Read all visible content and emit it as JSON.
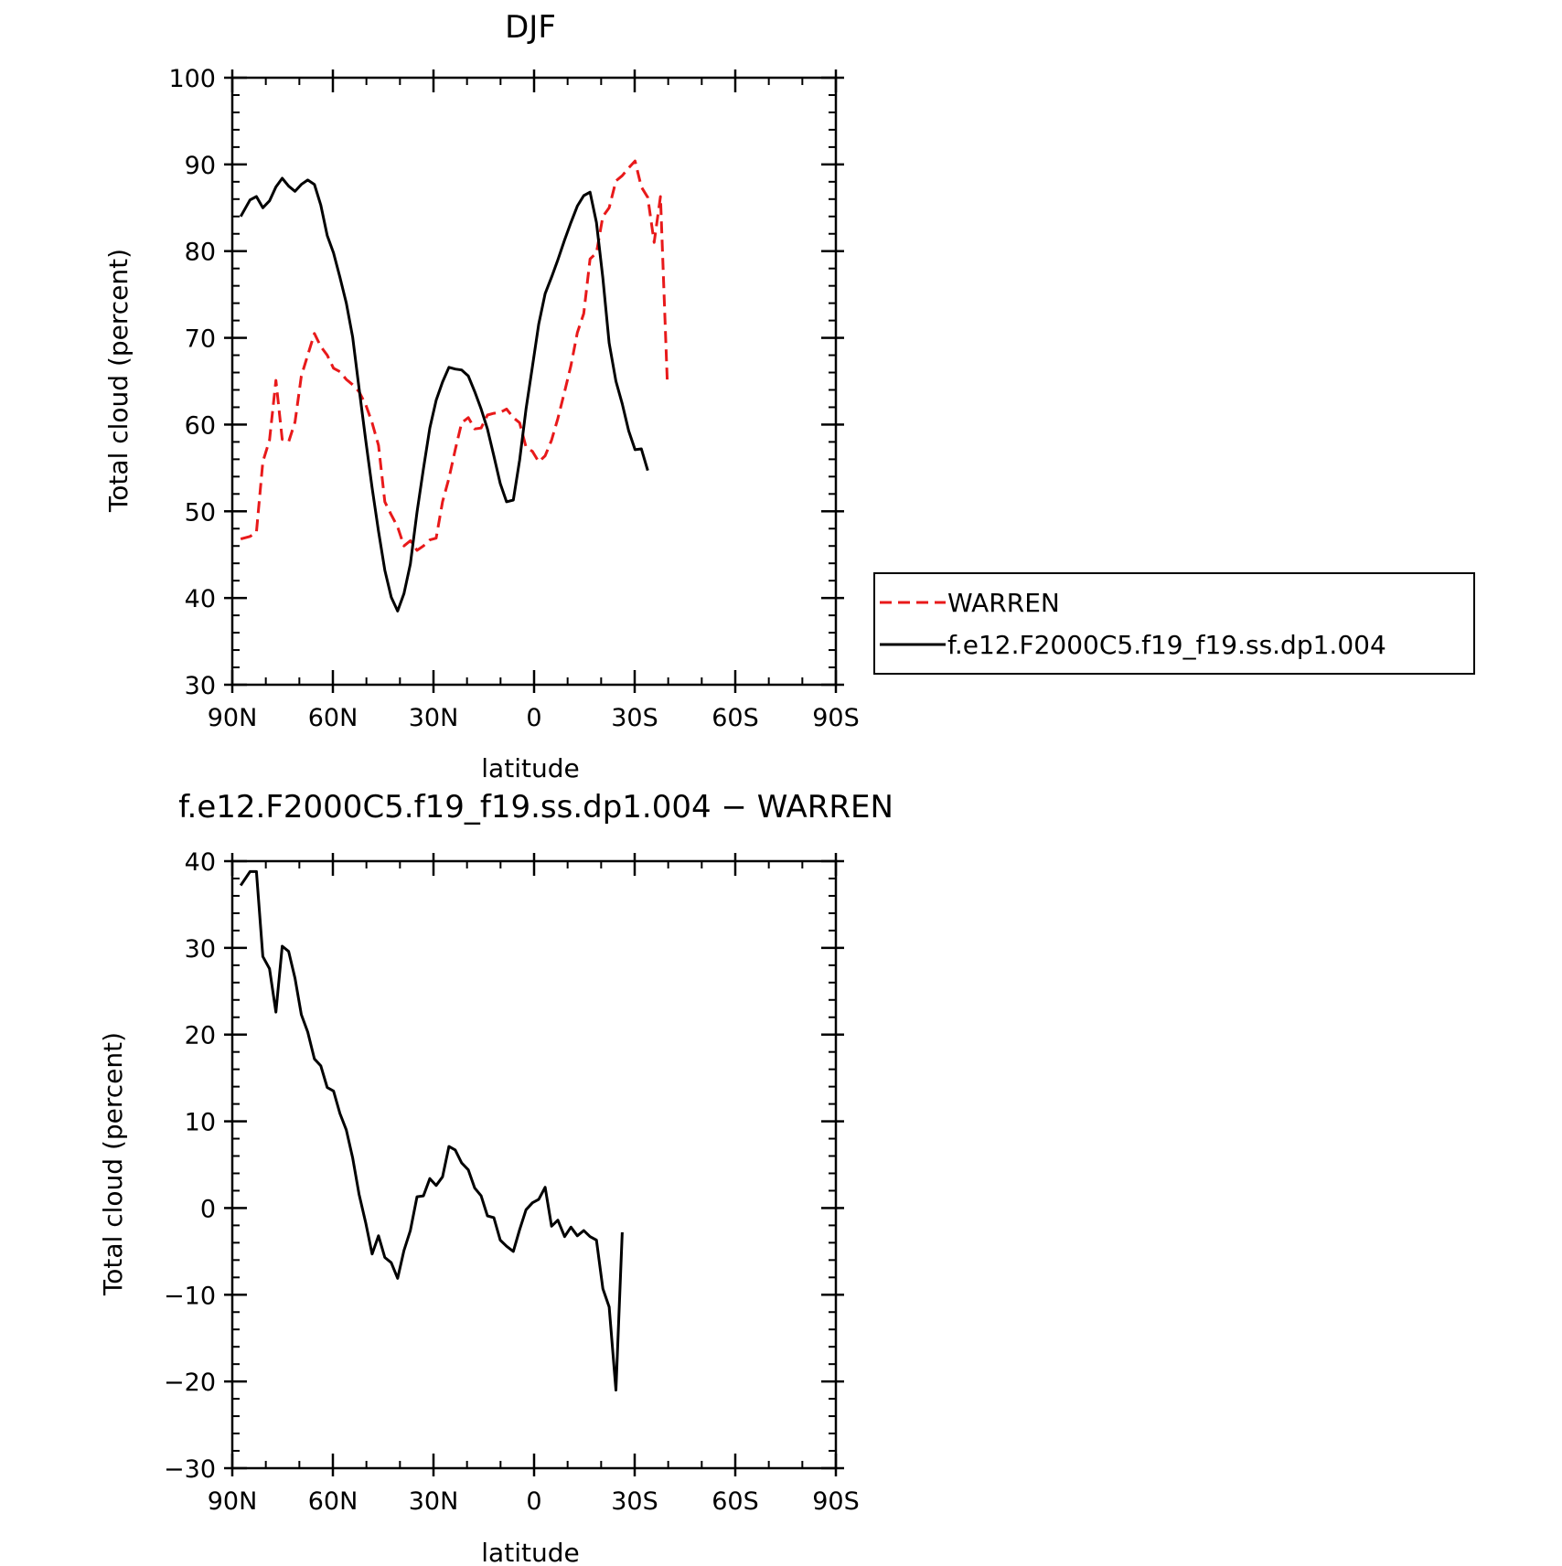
{
  "colors": {
    "observation": "#e8191a",
    "model": "#000000",
    "axes": "#000000",
    "background": "#ffffff"
  },
  "chart_data": [
    {
      "type": "line",
      "title": "DJF",
      "xlabel": "latitude",
      "ylabel": "Total cloud (percent)",
      "xlim": [
        90,
        -90
      ],
      "ylim": [
        30,
        100
      ],
      "x_ticks": [
        90,
        60,
        30,
        0,
        -30,
        -60,
        -90
      ],
      "x_tick_labels": [
        "90N",
        "60N",
        "30N",
        "0",
        "30S",
        "60S",
        "90S"
      ],
      "y_ticks": [
        30,
        40,
        50,
        60,
        70,
        80,
        90,
        100
      ],
      "y_tick_labels": [
        "30",
        "40",
        "50",
        "60",
        "70",
        "80",
        "90",
        "100"
      ],
      "grid": false,
      "legend": "right, outside plot",
      "series": [
        {
          "name": "WARREN",
          "style": "dashed",
          "color": "#e8191a",
          "points": [
            [
              87.5,
              46.8
            ],
            [
              84.7,
              47.1
            ],
            [
              82.8,
              47.6
            ],
            [
              80.9,
              55.7
            ],
            [
              78.9,
              58.2
            ],
            [
              77.0,
              65.1
            ],
            [
              75.1,
              58.3
            ],
            [
              73.2,
              58.0
            ],
            [
              71.3,
              60.3
            ],
            [
              69.4,
              65.6
            ],
            [
              67.5,
              68.0
            ],
            [
              65.5,
              70.5
            ],
            [
              63.6,
              69.0
            ],
            [
              61.7,
              68.0
            ],
            [
              59.8,
              66.5
            ],
            [
              57.9,
              66.1
            ],
            [
              56.0,
              65.2
            ],
            [
              54.1,
              64.6
            ],
            [
              52.2,
              63.8
            ],
            [
              50.2,
              62.3
            ],
            [
              48.3,
              60.2
            ],
            [
              46.4,
              57.6
            ],
            [
              44.5,
              51.1
            ],
            [
              42.6,
              49.6
            ],
            [
              40.7,
              48.2
            ],
            [
              38.8,
              46.0
            ],
            [
              36.9,
              46.6
            ],
            [
              34.9,
              45.5
            ],
            [
              33.0,
              46.0
            ],
            [
              31.1,
              46.7
            ],
            [
              29.2,
              46.9
            ],
            [
              27.3,
              51.1
            ],
            [
              25.4,
              53.8
            ],
            [
              23.5,
              57.1
            ],
            [
              21.6,
              60.2
            ],
            [
              19.6,
              60.8
            ],
            [
              17.7,
              59.5
            ],
            [
              15.8,
              59.6
            ],
            [
              13.9,
              61.1
            ],
            [
              12.0,
              61.3
            ],
            [
              10.1,
              61.4
            ],
            [
              8.2,
              61.8
            ],
            [
              6.2,
              60.8
            ],
            [
              4.3,
              60.2
            ],
            [
              2.4,
              57.4
            ],
            [
              0.5,
              56.9
            ],
            [
              -1.4,
              55.7
            ],
            [
              -3.3,
              56.4
            ],
            [
              -5.2,
              58.2
            ],
            [
              -7.1,
              60.7
            ],
            [
              -9.1,
              63.8
            ],
            [
              -11.0,
              66.8
            ],
            [
              -12.9,
              70.6
            ],
            [
              -14.8,
              72.8
            ],
            [
              -16.7,
              79.1
            ],
            [
              -18.6,
              79.8
            ],
            [
              -20.5,
              84.0
            ],
            [
              -22.4,
              85.0
            ],
            [
              -24.4,
              88.1
            ],
            [
              -26.3,
              88.7
            ],
            [
              -28.2,
              89.6
            ],
            [
              -30.1,
              90.4
            ],
            [
              -32.0,
              87.4
            ],
            [
              -33.9,
              86.2
            ],
            [
              -35.8,
              81.0
            ],
            [
              -37.7,
              86.3
            ],
            [
              -39.7,
              65.1
            ]
          ]
        },
        {
          "name": "f.e12.F2000C5.f19_f19.ss.dp1.004",
          "style": "solid",
          "color": "#000000",
          "points": [
            [
              87.5,
              84.0
            ],
            [
              84.7,
              85.9
            ],
            [
              82.8,
              86.3
            ],
            [
              80.9,
              85.0
            ],
            [
              78.9,
              85.8
            ],
            [
              77.0,
              87.4
            ],
            [
              75.1,
              88.4
            ],
            [
              73.2,
              87.5
            ],
            [
              71.3,
              86.9
            ],
            [
              69.4,
              87.7
            ],
            [
              67.5,
              88.2
            ],
            [
              65.5,
              87.7
            ],
            [
              63.6,
              85.3
            ],
            [
              61.7,
              81.8
            ],
            [
              59.8,
              79.8
            ],
            [
              57.9,
              77.0
            ],
            [
              56.0,
              74.0
            ],
            [
              54.1,
              70.1
            ],
            [
              52.2,
              64.2
            ],
            [
              50.2,
              58.2
            ],
            [
              48.3,
              52.7
            ],
            [
              46.4,
              47.7
            ],
            [
              44.5,
              43.2
            ],
            [
              42.6,
              40.1
            ],
            [
              40.7,
              38.5
            ],
            [
              38.8,
              40.5
            ],
            [
              36.9,
              43.9
            ],
            [
              34.9,
              49.9
            ],
            [
              33.0,
              54.9
            ],
            [
              31.1,
              59.6
            ],
            [
              29.2,
              62.8
            ],
            [
              27.3,
              64.9
            ],
            [
              25.4,
              66.6
            ],
            [
              23.5,
              66.4
            ],
            [
              21.6,
              66.3
            ],
            [
              19.6,
              65.6
            ],
            [
              17.7,
              63.8
            ],
            [
              15.8,
              61.8
            ],
            [
              13.9,
              59.5
            ],
            [
              12.0,
              56.4
            ],
            [
              10.1,
              53.2
            ],
            [
              8.2,
              51.1
            ],
            [
              6.2,
              51.3
            ],
            [
              4.3,
              55.9
            ],
            [
              2.4,
              61.8
            ],
            [
              0.5,
              66.7
            ],
            [
              -1.4,
              71.6
            ],
            [
              -3.3,
              75.1
            ],
            [
              -5.2,
              77.0
            ],
            [
              -7.1,
              79.0
            ],
            [
              -9.1,
              81.3
            ],
            [
              -11.0,
              83.3
            ],
            [
              -12.9,
              85.2
            ],
            [
              -14.8,
              86.4
            ],
            [
              -16.7,
              86.8
            ],
            [
              -18.6,
              83.3
            ],
            [
              -20.5,
              76.9
            ],
            [
              -22.4,
              69.4
            ],
            [
              -24.4,
              65.0
            ],
            [
              -26.3,
              62.4
            ],
            [
              -28.2,
              59.3
            ],
            [
              -30.1,
              57.1
            ],
            [
              -32.0,
              57.2
            ],
            [
              -33.9,
              54.7
            ]
          ]
        }
      ]
    },
    {
      "type": "line",
      "title": "f.e12.F2000C5.f19_f19.ss.dp1.004 − WARREN",
      "xlabel": "latitude",
      "ylabel": "Total cloud (percent)",
      "xlim": [
        90,
        -90
      ],
      "ylim": [
        -30,
        40
      ],
      "x_ticks": [
        90,
        60,
        30,
        0,
        -30,
        -60,
        -90
      ],
      "x_tick_labels": [
        "90N",
        "60N",
        "30N",
        "0",
        "30S",
        "60S",
        "90S"
      ],
      "y_ticks": [
        -30,
        -20,
        -10,
        0,
        10,
        20,
        30,
        40
      ],
      "y_tick_labels": [
        "−30",
        "−20",
        "−10",
        "0",
        "10",
        "20",
        "30",
        "40"
      ],
      "grid": false,
      "series": [
        {
          "style": "solid",
          "color": "#000000",
          "points": [
            [
              87.5,
              37.2
            ],
            [
              84.7,
              38.8
            ],
            [
              82.8,
              38.8
            ],
            [
              80.9,
              29.0
            ],
            [
              78.9,
              27.6
            ],
            [
              77.0,
              22.6
            ],
            [
              75.1,
              30.2
            ],
            [
              73.2,
              29.6
            ],
            [
              71.3,
              26.5
            ],
            [
              69.4,
              22.3
            ],
            [
              67.5,
              20.3
            ],
            [
              65.5,
              17.2
            ],
            [
              63.6,
              16.4
            ],
            [
              61.7,
              13.9
            ],
            [
              59.8,
              13.5
            ],
            [
              57.9,
              10.9
            ],
            [
              56.0,
              9.0
            ],
            [
              54.1,
              5.8
            ],
            [
              52.2,
              1.6
            ],
            [
              50.2,
              -1.7
            ],
            [
              48.3,
              -5.3
            ],
            [
              46.4,
              -3.2
            ],
            [
              44.5,
              -5.7
            ],
            [
              42.6,
              -6.3
            ],
            [
              40.7,
              -8.1
            ],
            [
              38.8,
              -4.9
            ],
            [
              36.9,
              -2.6
            ],
            [
              34.9,
              1.3
            ],
            [
              33.0,
              1.4
            ],
            [
              31.1,
              3.4
            ],
            [
              29.2,
              2.6
            ],
            [
              27.3,
              3.6
            ],
            [
              25.4,
              7.1
            ],
            [
              23.5,
              6.7
            ],
            [
              21.6,
              5.2
            ],
            [
              19.6,
              4.4
            ],
            [
              17.7,
              2.3
            ],
            [
              15.8,
              1.4
            ],
            [
              13.9,
              -0.9
            ],
            [
              12.0,
              -1.1
            ],
            [
              10.1,
              -3.7
            ],
            [
              8.2,
              -4.4
            ],
            [
              6.2,
              -5.0
            ],
            [
              4.3,
              -2.5
            ],
            [
              2.4,
              -0.2
            ],
            [
              0.5,
              0.6
            ],
            [
              -1.4,
              1.0
            ],
            [
              -3.3,
              2.4
            ],
            [
              -5.2,
              -2.1
            ],
            [
              -7.1,
              -1.4
            ],
            [
              -9.1,
              -3.3
            ],
            [
              -11.0,
              -2.2
            ],
            [
              -12.9,
              -3.2
            ],
            [
              -14.8,
              -2.6
            ],
            [
              -16.7,
              -3.3
            ],
            [
              -18.6,
              -3.7
            ],
            [
              -20.5,
              -9.3
            ],
            [
              -22.4,
              -11.4
            ],
            [
              -24.4,
              -21.0
            ],
            [
              -26.3,
              -2.8
            ]
          ]
        }
      ]
    }
  ]
}
